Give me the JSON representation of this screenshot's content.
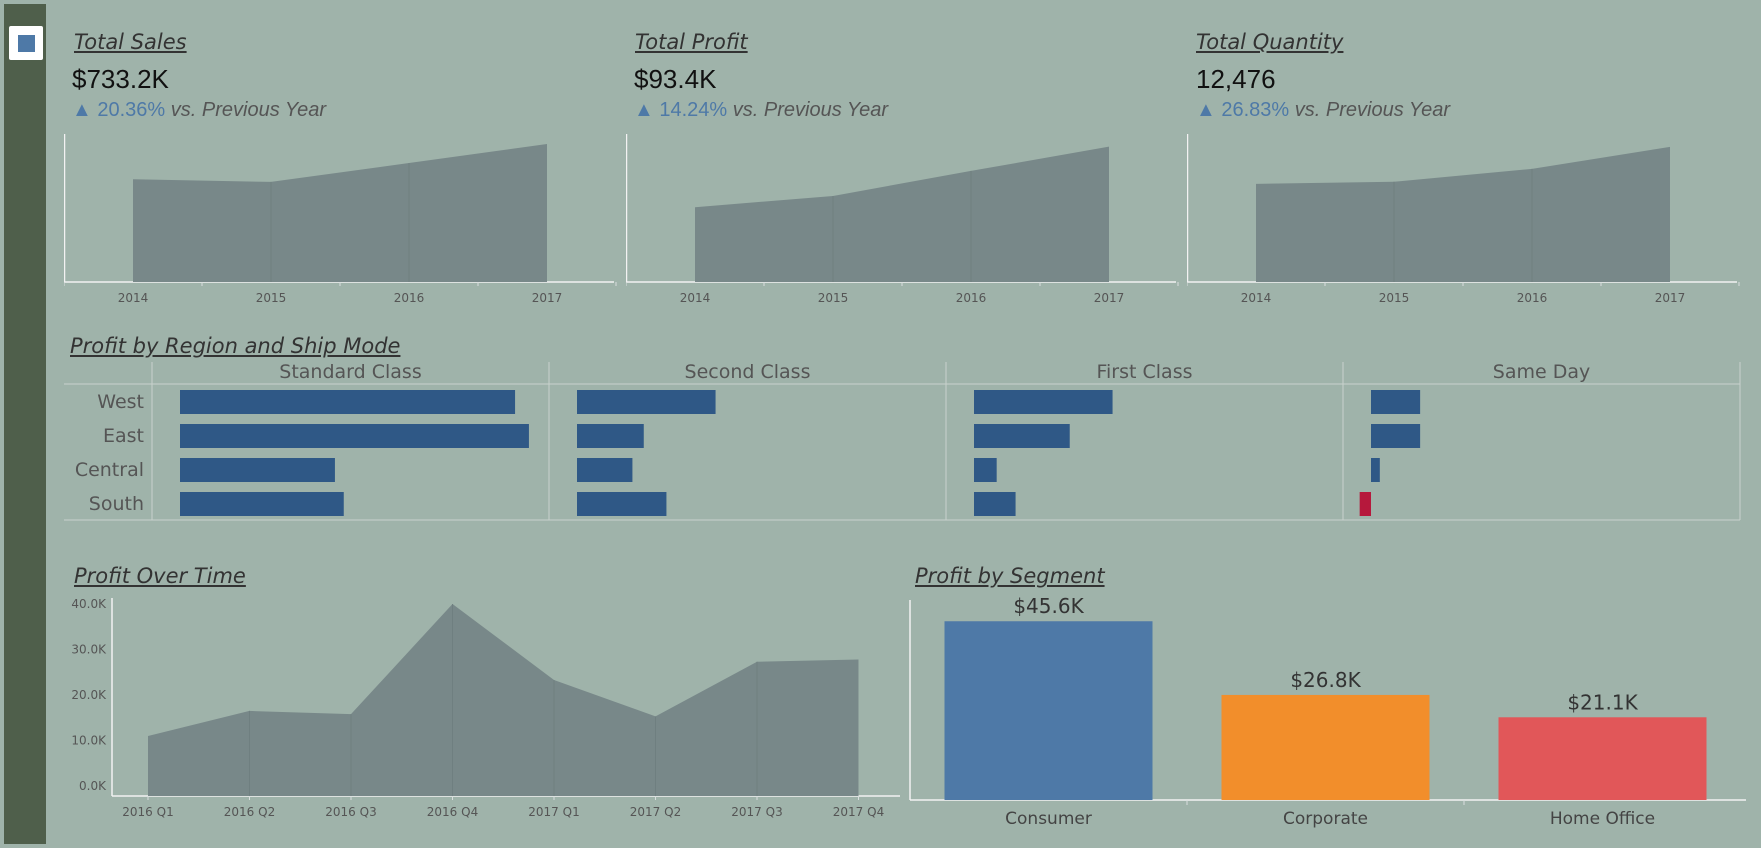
{
  "colors": {
    "area": "#788889",
    "bar_positive": "#2f5886",
    "bar_negative": "#b6183c",
    "accent": "#4e79a7",
    "segment_colors": [
      "#4e79a7",
      "#f28e2b",
      "#e15759"
    ]
  },
  "sidebar": {
    "menu_icon": "square-menu-icon"
  },
  "kpis": [
    {
      "title": "Total Sales",
      "value": "$733.2K",
      "change": "20.36%",
      "change_label": "vs. Previous Year"
    },
    {
      "title": "Total Profit",
      "value": "$93.4K",
      "change": "14.24%",
      "change_label": "vs. Previous Year"
    },
    {
      "title": "Total Quantity",
      "value": "12,476",
      "change": "26.83%",
      "change_label": "vs. Previous Year"
    }
  ],
  "region_title": "Profit by Region and Ship Mode",
  "time_title": "Profit Over Time",
  "segment_title": "Profit by Segment",
  "chart_data": [
    {
      "type": "area",
      "title": "Total Sales",
      "x": [
        "2014",
        "2015",
        "2016",
        "2017"
      ],
      "values": [
        152,
        148,
        176,
        204
      ],
      "ylim": [
        0,
        210
      ]
    },
    {
      "type": "area",
      "title": "Total Profit",
      "x": [
        "2014",
        "2015",
        "2016",
        "2017"
      ],
      "values": [
        17.9,
        20.6,
        26.6,
        32.4
      ],
      "ylim": [
        0,
        34
      ]
    },
    {
      "type": "area",
      "title": "Total Quantity",
      "x": [
        "2014",
        "2015",
        "2016",
        "2017"
      ],
      "values": [
        2280,
        2330,
        2630,
        3140
      ],
      "ylim": [
        0,
        3300
      ]
    },
    {
      "type": "bar",
      "title": "Profit by Region and Ship Mode",
      "orientation": "horizontal",
      "categories": [
        "West",
        "East",
        "Central",
        "South"
      ],
      "columns": [
        "Standard Class",
        "Second Class",
        "First Class",
        "Same Day"
      ],
      "series": [
        {
          "name": "Standard Class",
          "values": [
            26600,
            27700,
            12300,
            13000
          ]
        },
        {
          "name": "Second Class",
          "values": [
            11000,
            5300,
            4400,
            7100
          ]
        },
        {
          "name": "First Class",
          "values": [
            11000,
            7600,
            1800,
            3300
          ]
        },
        {
          "name": "Same Day",
          "values": [
            3900,
            3900,
            700,
            -900
          ]
        }
      ],
      "xlim": [
        -2200,
        28500
      ]
    },
    {
      "type": "area",
      "title": "Profit Over Time",
      "x": [
        "2016 Q1",
        "2016 Q2",
        "2016 Q3",
        "2016 Q4",
        "2017 Q1",
        "2017 Q2",
        "2017 Q3",
        "2017 Q4"
      ],
      "y_ticks": [
        "0.0K",
        "10.0K",
        "20.0K",
        "30.0K",
        "40.0K"
      ],
      "values": [
        11000,
        16500,
        15800,
        40000,
        23300,
        15300,
        27300,
        27800
      ],
      "ylim": [
        0,
        40000
      ]
    },
    {
      "type": "bar",
      "title": "Profit by Segment",
      "categories": [
        "Consumer",
        "Corporate",
        "Home Office"
      ],
      "values": [
        45600,
        26800,
        21100
      ],
      "labels": [
        "$45.6K",
        "$26.8K",
        "$21.1K"
      ],
      "ylim": [
        0,
        50000
      ]
    }
  ]
}
